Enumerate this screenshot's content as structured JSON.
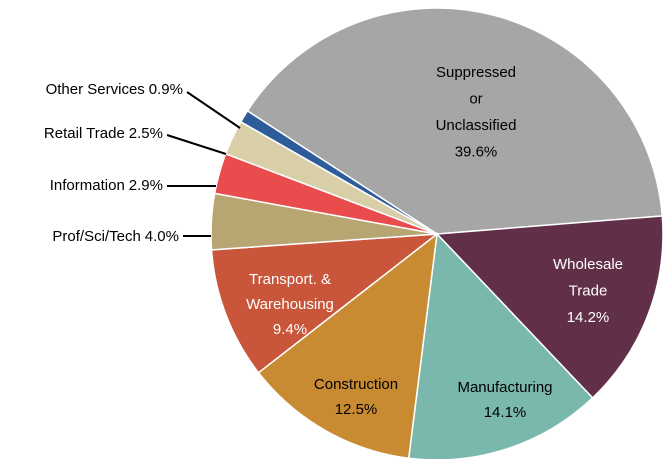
{
  "chart_data": {
    "type": "pie",
    "categories": [
      "Suppressed or Unclassified",
      "Wholesale Trade",
      "Manufacturing",
      "Construction",
      "Transport. & Warehousing",
      "Prof/Sci/Tech",
      "Information",
      "Retail Trade",
      "Other Services"
    ],
    "values": [
      39.6,
      14.2,
      14.1,
      12.5,
      9.4,
      4.0,
      2.9,
      2.5,
      0.9
    ],
    "value_labels": [
      "39.6%",
      "14.2%",
      "14.1%",
      "12.5%",
      "9.4%",
      "4.0%",
      "2.9%",
      "2.5%",
      "0.9%"
    ],
    "colors": [
      "#a6a6a6",
      "#622f48",
      "#7ab8ae",
      "#c88b32",
      "#c9553a",
      "#b7a672",
      "#e84c4c",
      "#d8cfa8",
      "#2e5c9a"
    ]
  }
}
